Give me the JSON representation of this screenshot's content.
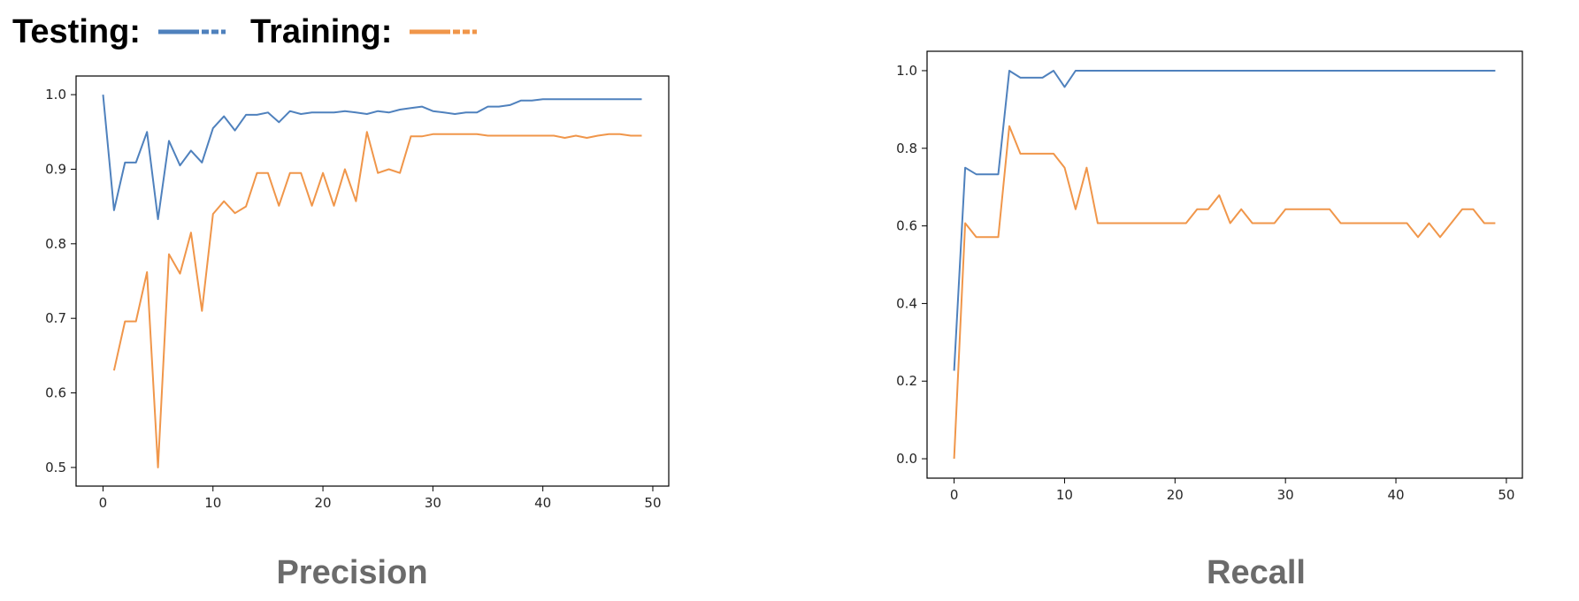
{
  "legend": {
    "testing_label": "Testing:",
    "training_label": "Training:"
  },
  "colors": {
    "testing": "#4f81bd",
    "training": "#f0964a",
    "axis": "#000000",
    "tick_text": "#262626",
    "title_text": "#6b6b6b"
  },
  "chart_data": [
    {
      "type": "line",
      "title": "Precision",
      "xlim": [
        -2.45,
        51.45
      ],
      "ylim": [
        0.475,
        1.025
      ],
      "xticks": [
        0,
        10,
        20,
        30,
        40,
        50
      ],
      "yticks": [
        0.5,
        0.6,
        0.7,
        0.8,
        0.9,
        1.0
      ],
      "ytick_labels": [
        "0.5",
        "0.6",
        "0.7",
        "0.8",
        "0.9",
        "1.0"
      ],
      "grid": false,
      "series": [
        {
          "name": "Testing:",
          "x": [
            0,
            1,
            2,
            3,
            4,
            5,
            6,
            7,
            8,
            9,
            10,
            11,
            12,
            13,
            14,
            15,
            16,
            17,
            18,
            19,
            20,
            21,
            22,
            23,
            24,
            25,
            26,
            27,
            28,
            29,
            30,
            31,
            32,
            33,
            34,
            35,
            36,
            37,
            38,
            39,
            40,
            41,
            42,
            43,
            44,
            45,
            46,
            47,
            48,
            49
          ],
          "values": [
            1.0,
            0.845,
            0.909,
            0.909,
            0.95,
            0.833,
            0.938,
            0.905,
            0.925,
            0.909,
            0.955,
            0.971,
            0.952,
            0.973,
            0.973,
            0.976,
            0.963,
            0.978,
            0.974,
            0.976,
            0.976,
            0.976,
            0.978,
            0.976,
            0.974,
            0.978,
            0.976,
            0.98,
            0.982,
            0.984,
            0.978,
            0.976,
            0.974,
            0.976,
            0.976,
            0.984,
            0.984,
            0.986,
            0.992,
            0.992,
            0.994,
            0.994,
            0.994,
            0.994,
            0.994,
            0.994,
            0.994,
            0.994,
            0.994,
            0.994
          ]
        },
        {
          "name": "Training:",
          "x": [
            1,
            2,
            3,
            4,
            5,
            6,
            7,
            8,
            9,
            10,
            11,
            12,
            13,
            14,
            15,
            16,
            17,
            18,
            19,
            20,
            21,
            22,
            23,
            24,
            25,
            26,
            27,
            28,
            29,
            30,
            31,
            32,
            33,
            34,
            35,
            36,
            37,
            38,
            39,
            40,
            41,
            42,
            43,
            44,
            45,
            46,
            47,
            48,
            49
          ],
          "values": [
            0.63,
            0.696,
            0.696,
            0.762,
            0.5,
            0.786,
            0.76,
            0.815,
            0.71,
            0.84,
            0.857,
            0.841,
            0.85,
            0.895,
            0.895,
            0.851,
            0.895,
            0.895,
            0.851,
            0.895,
            0.851,
            0.9,
            0.857,
            0.95,
            0.895,
            0.9,
            0.895,
            0.944,
            0.944,
            0.947,
            0.947,
            0.947,
            0.947,
            0.947,
            0.945,
            0.945,
            0.945,
            0.945,
            0.945,
            0.945,
            0.945,
            0.942,
            0.945,
            0.942,
            0.945,
            0.947,
            0.947,
            0.945,
            0.945
          ]
        }
      ]
    },
    {
      "type": "line",
      "title": "Recall",
      "xlim": [
        -2.45,
        51.45
      ],
      "ylim": [
        -0.05,
        1.05
      ],
      "xticks": [
        0,
        10,
        20,
        30,
        40,
        50
      ],
      "yticks": [
        0.0,
        0.2,
        0.4,
        0.6,
        0.8,
        1.0
      ],
      "ytick_labels": [
        "0.0",
        "0.2",
        "0.4",
        "0.6",
        "0.8",
        "1.0"
      ],
      "grid": false,
      "series": [
        {
          "name": "Testing:",
          "x": [
            0,
            1,
            2,
            3,
            4,
            5,
            6,
            7,
            8,
            9,
            10,
            11,
            12,
            13,
            14,
            15,
            16,
            17,
            18,
            19,
            20,
            21,
            22,
            23,
            24,
            25,
            26,
            27,
            28,
            29,
            30,
            31,
            32,
            33,
            34,
            35,
            36,
            37,
            38,
            39,
            40,
            41,
            42,
            43,
            44,
            45,
            46,
            47,
            48,
            49
          ],
          "values": [
            0.227,
            0.75,
            0.733,
            0.733,
            0.733,
            1.0,
            0.982,
            0.982,
            0.982,
            1.0,
            0.958,
            1.0,
            1.0,
            1.0,
            1.0,
            1.0,
            1.0,
            1.0,
            1.0,
            1.0,
            1.0,
            1.0,
            1.0,
            1.0,
            1.0,
            1.0,
            1.0,
            1.0,
            1.0,
            1.0,
            1.0,
            1.0,
            1.0,
            1.0,
            1.0,
            1.0,
            1.0,
            1.0,
            1.0,
            1.0,
            1.0,
            1.0,
            1.0,
            1.0,
            1.0,
            1.0,
            1.0,
            1.0,
            1.0,
            1.0
          ]
        },
        {
          "name": "Training:",
          "x": [
            0,
            1,
            2,
            3,
            4,
            5,
            6,
            7,
            8,
            9,
            10,
            11,
            12,
            13,
            14,
            15,
            16,
            17,
            18,
            19,
            20,
            21,
            22,
            23,
            24,
            25,
            26,
            27,
            28,
            29,
            30,
            31,
            32,
            33,
            34,
            35,
            36,
            37,
            38,
            39,
            40,
            41,
            42,
            43,
            44,
            45,
            46,
            47,
            48,
            49
          ],
          "values": [
            0.0,
            0.607,
            0.571,
            0.571,
            0.571,
            0.857,
            0.786,
            0.786,
            0.786,
            0.786,
            0.75,
            0.643,
            0.75,
            0.607,
            0.607,
            0.607,
            0.607,
            0.607,
            0.607,
            0.607,
            0.607,
            0.607,
            0.643,
            0.643,
            0.679,
            0.607,
            0.643,
            0.607,
            0.607,
            0.607,
            0.643,
            0.643,
            0.643,
            0.643,
            0.643,
            0.607,
            0.607,
            0.607,
            0.607,
            0.607,
            0.607,
            0.607,
            0.571,
            0.607,
            0.571,
            0.607,
            0.643,
            0.643,
            0.607,
            0.607
          ]
        }
      ]
    }
  ]
}
